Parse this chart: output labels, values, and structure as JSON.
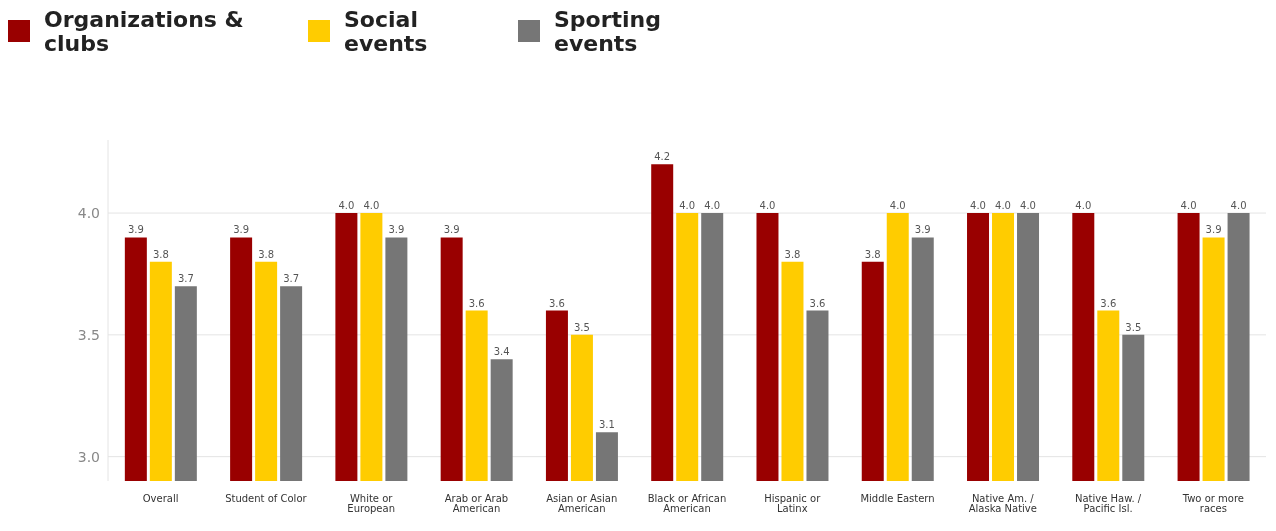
{
  "chart_data": {
    "type": "bar",
    "categories": [
      "Overall",
      "Student of Color",
      "White or European",
      "Arab or Arab American",
      "Asian or Asian American",
      "Black or African American",
      "Hispanic or Latinx",
      "Middle Eastern",
      "Native Am. / Alaska Native",
      "Native Haw. / Pacific Isl.",
      "Two or more races"
    ],
    "series": [
      {
        "name": "Organizations & clubs",
        "color": "#990000",
        "values": [
          3.9,
          3.9,
          4.0,
          3.9,
          3.6,
          4.2,
          4.0,
          3.8,
          4.0,
          4.0,
          4.0
        ],
        "value_labels": [
          "3.9",
          "3.9",
          "4.0",
          "3.9",
          "3.6",
          "4.2",
          "4.0",
          "3.8",
          "4.0",
          "4.0",
          "4.0"
        ]
      },
      {
        "name": "Social events",
        "color": "#ffcc00",
        "values": [
          3.8,
          3.8,
          4.0,
          3.6,
          3.5,
          4.0,
          3.8,
          4.0,
          4.0,
          3.6,
          3.9
        ],
        "value_labels": [
          "3.8",
          "3.8",
          "4.0",
          "3.6",
          "3.5",
          "4.0",
          "3.8",
          "4.0",
          "4.0",
          "3.6",
          "3.9"
        ]
      },
      {
        "name": "Sporting events",
        "color": "#767676",
        "values": [
          3.7,
          3.7,
          3.9,
          3.4,
          3.1,
          4.0,
          3.6,
          3.9,
          4.0,
          3.5,
          4.0
        ],
        "value_labels": [
          "3.7",
          "3.7",
          "3.9",
          "3.4",
          "3.1",
          "4.0",
          "3.6",
          "3.9",
          "4.0",
          "3.5",
          "4.0"
        ]
      }
    ],
    "ylim": [
      2.9,
      4.3
    ],
    "yticks": [
      {
        "value": 3,
        "label": "3.0"
      },
      {
        "value": 3.5,
        "label": "3.5"
      },
      {
        "value": 4,
        "label": "4.0"
      }
    ],
    "grid": "y",
    "legend": "top left"
  }
}
